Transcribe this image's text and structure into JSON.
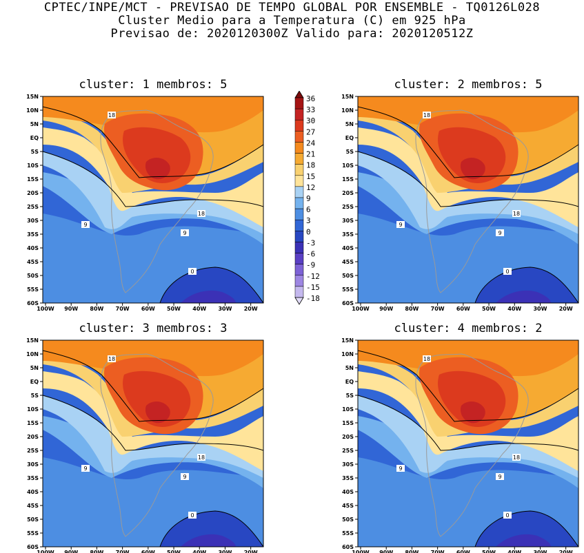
{
  "header": {
    "line1": "CPTEC/INPE/MCT - PREVISAO DE TEMPO GLOBAL POR ENSEMBLE - TQ0126L028",
    "line2": "Cluster Medio para a Temperatura (C) em 925 hPa",
    "line3": "Previsao de: 2020120300Z   Valido para: 2020120512Z"
  },
  "panels": [
    {
      "title": "cluster: 1  membros: 5",
      "contour_label": "18",
      "cold_label": "9",
      "zero_label": "0"
    },
    {
      "title": "cluster: 2  membros: 5",
      "contour_label": "18",
      "cold_label": "9",
      "zero_label": "0"
    },
    {
      "title": "cluster: 3  membros: 3",
      "contour_label": "18",
      "cold_label": "9",
      "zero_label": "0"
    },
    {
      "title": "cluster: 4  membros: 2",
      "contour_label": "18",
      "cold_label": "9",
      "zero_label": "0"
    }
  ],
  "axes": {
    "lat_ticks": [
      "15N",
      "10N",
      "5N",
      "EQ",
      "5S",
      "10S",
      "15S",
      "20S",
      "25S",
      "30S",
      "35S",
      "40S",
      "45S",
      "50S",
      "55S",
      "60S"
    ],
    "lon_ticks": [
      "100W",
      "90W",
      "80W",
      "70W",
      "60W",
      "50W",
      "40W",
      "30W",
      "20W"
    ]
  },
  "legend": {
    "levels": [
      "36",
      "33",
      "30",
      "27",
      "24",
      "21",
      "18",
      "15",
      "12",
      "9",
      "6",
      "3",
      "0",
      "-3",
      "-6",
      "-9",
      "-12",
      "-15",
      "-18"
    ],
    "colors": [
      "#7a0c0c",
      "#a51414",
      "#c42323",
      "#dc3a1e",
      "#ec5e22",
      "#f58a1e",
      "#f6aa32",
      "#f9d170",
      "#ffe49a",
      "#a9d2f4",
      "#74b2ee",
      "#4d8ee2",
      "#3166d6",
      "#2847c2",
      "#3b31b6",
      "#5a3fc4",
      "#7d62d6",
      "#9d86e2",
      "#c4b8ee",
      "#e2dcf7"
    ]
  }
}
